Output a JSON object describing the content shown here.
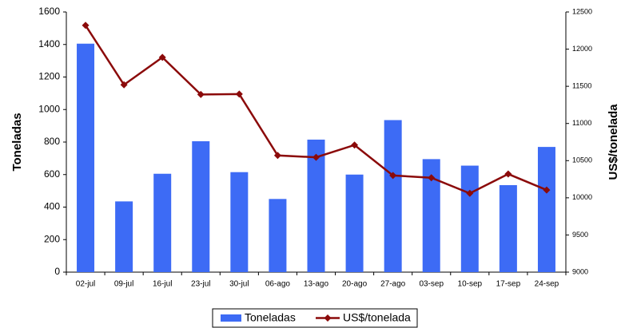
{
  "chart_data": {
    "type": "bar",
    "categories": [
      "02-jul",
      "09-jul",
      "16-jul",
      "23-jul",
      "30-jul",
      "06-ago",
      "13-ago",
      "20-ago",
      "27-ago",
      "03-sep",
      "10-sep",
      "17-sep",
      "24-sep"
    ],
    "series": [
      {
        "name": "Toneladas",
        "color": "#3d6bf5",
        "type": "bar",
        "values": [
          1405,
          435,
          605,
          805,
          615,
          450,
          815,
          600,
          935,
          695,
          655,
          535,
          770
        ]
      },
      {
        "name": "US$/tonelada",
        "color": "#8b0a0a",
        "type": "line",
        "axis": "y2",
        "values": [
          12320,
          11520,
          11890,
          11390,
          11395,
          10570,
          10545,
          10710,
          10300,
          10270,
          10060,
          10320,
          10105
        ]
      }
    ],
    "ylabel": "Toneladas",
    "y2label": "US$/tonelada",
    "ylim": [
      0,
      1600
    ],
    "yticks": [
      0,
      200,
      400,
      600,
      800,
      1000,
      1200,
      1400,
      1600
    ],
    "y2lim": [
      9000,
      12500
    ],
    "y2ticks": [
      9000,
      9500,
      10000,
      10500,
      11000,
      11500,
      12000,
      12500
    ],
    "legend": "bottom"
  }
}
